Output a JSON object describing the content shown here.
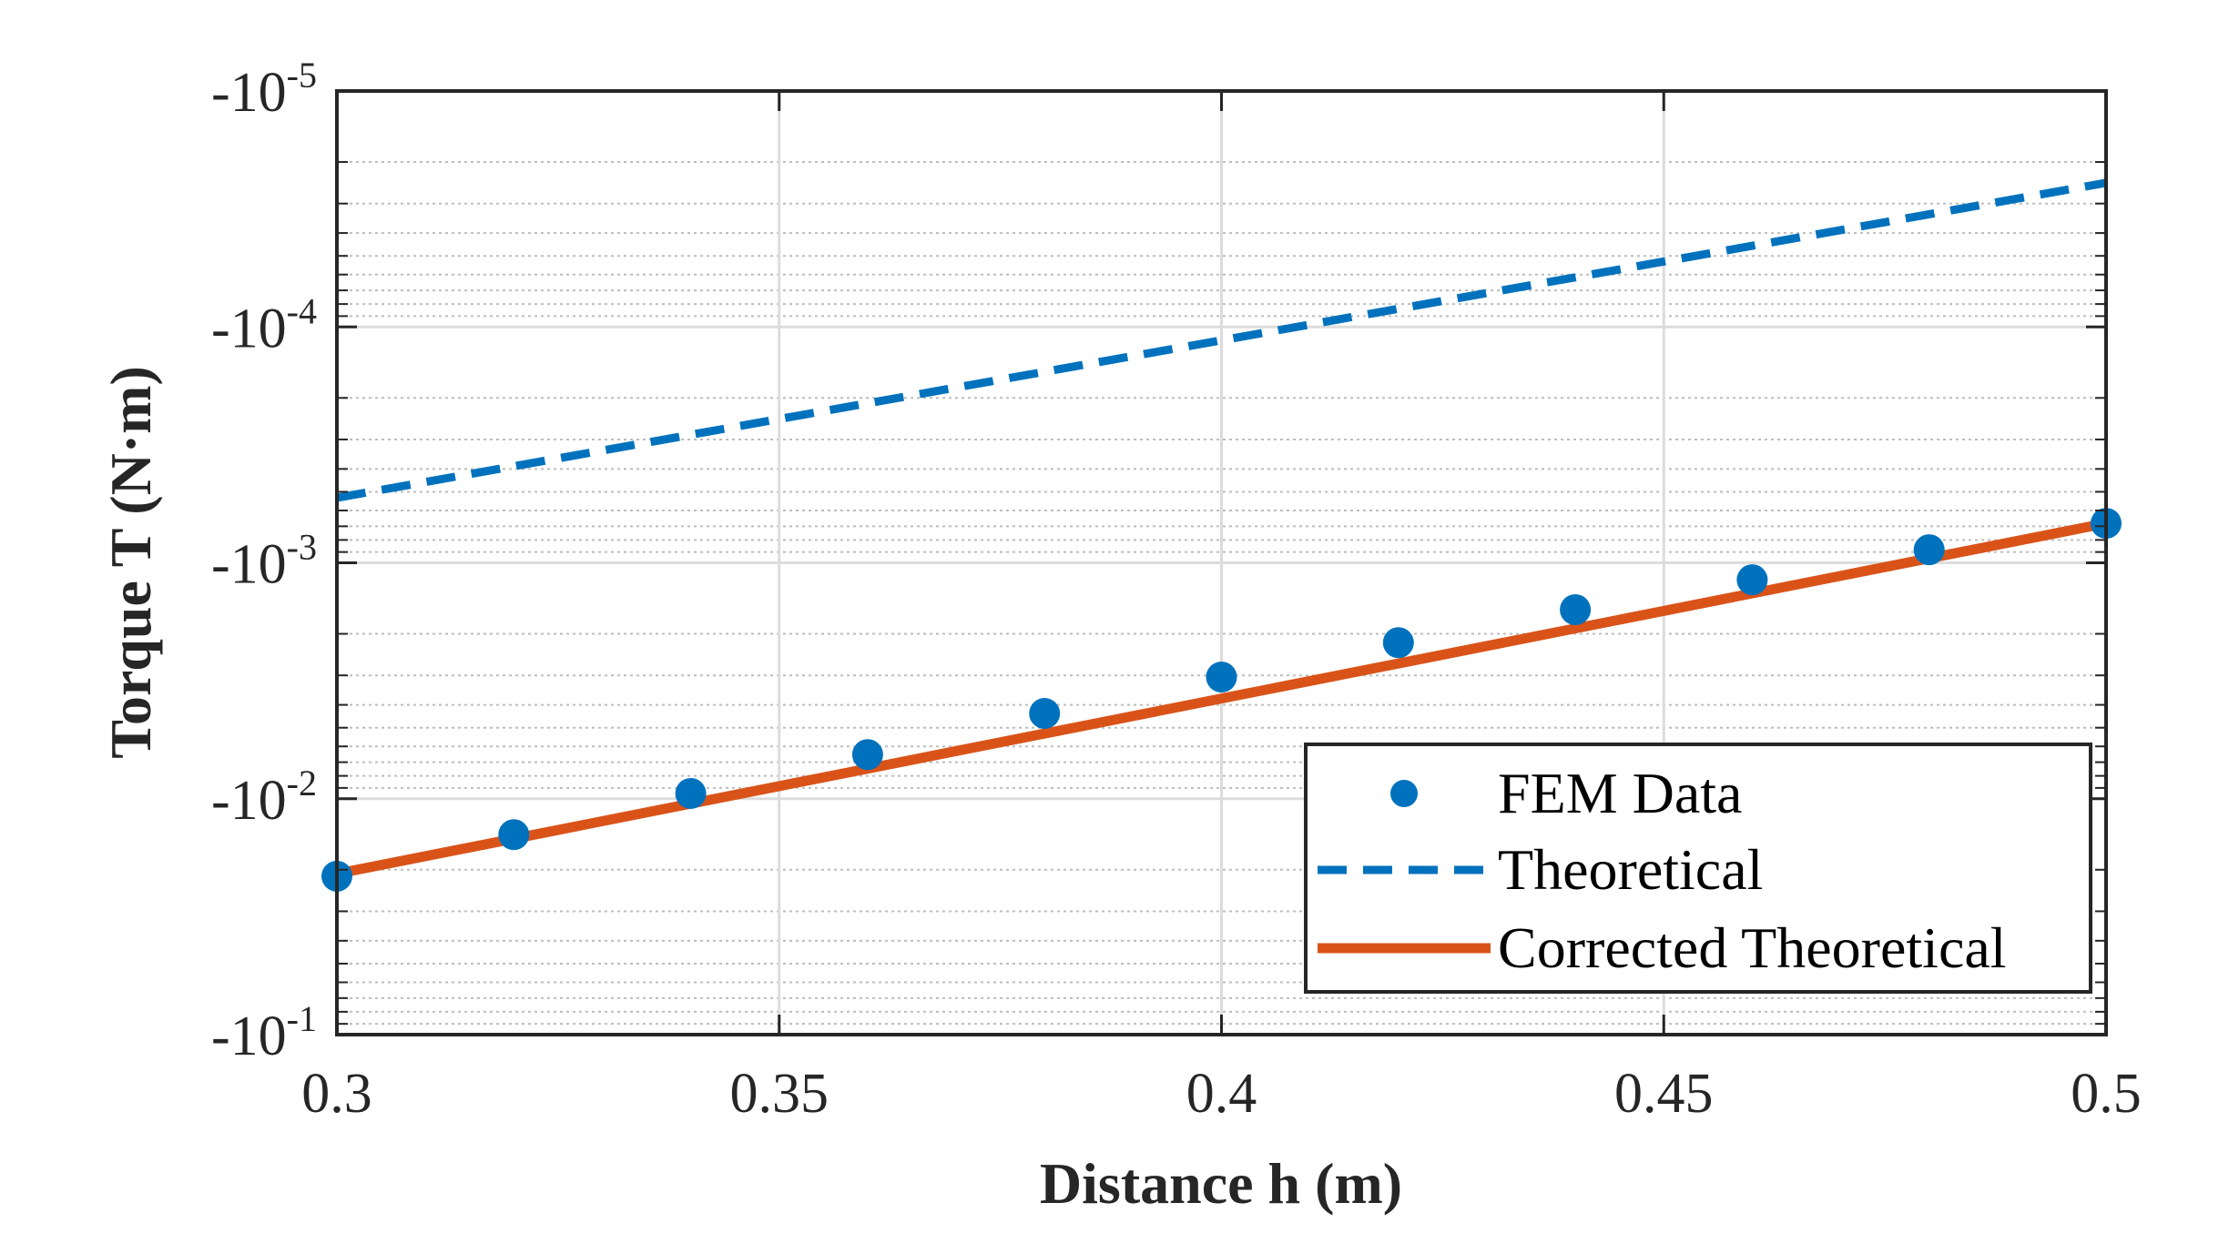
{
  "chart_data": {
    "type": "line",
    "title": "",
    "xlabel": "Distance h (m)",
    "ylabel": "Torque T (N·m)",
    "x_ticks": [
      {
        "value": 0.3,
        "label": "0.3"
      },
      {
        "value": 0.35,
        "label": "0.35"
      },
      {
        "value": 0.4,
        "label": "0.4"
      },
      {
        "value": 0.45,
        "label": "0.45"
      },
      {
        "value": 0.5,
        "label": "0.5"
      }
    ],
    "y_ticks": [
      {
        "magnitude": 1e-05,
        "base": "-10",
        "exp": "-5"
      },
      {
        "magnitude": 0.0001,
        "base": "-10",
        "exp": "-4"
      },
      {
        "magnitude": 0.001,
        "base": "-10",
        "exp": "-3"
      },
      {
        "magnitude": 0.01,
        "base": "-10",
        "exp": "-2"
      },
      {
        "magnitude": 0.1,
        "base": "-10",
        "exp": "-1"
      }
    ],
    "xlim": [
      0.3,
      0.5
    ],
    "ylim": [
      -0.1,
      -1e-05
    ],
    "yscale": "negative-log",
    "grid": true,
    "legend_position": "bottom-right",
    "series": [
      {
        "name": "FEM Data",
        "style": "markers",
        "color": "#0072BD",
        "x": [
          0.3,
          0.32,
          0.34,
          0.36,
          0.38,
          0.4,
          0.42,
          0.44,
          0.46,
          0.48,
          0.5
        ],
        "y": [
          -0.0213,
          -0.0142,
          -0.0095,
          -0.0065,
          -0.00435,
          -0.00305,
          -0.00218,
          -0.00158,
          -0.00118,
          -0.00088,
          -0.00068
        ]
      },
      {
        "name": "Theoretical",
        "style": "dashed",
        "color": "#0072BD",
        "x": [
          0.3,
          0.5
        ],
        "y": [
          -0.00053,
          -2.45e-05
        ]
      },
      {
        "name": "Corrected Theoretical",
        "style": "solid",
        "color": "#D95319",
        "x": [
          0.3,
          0.5
        ],
        "y": [
          -0.0208,
          -0.00068
        ]
      }
    ]
  }
}
